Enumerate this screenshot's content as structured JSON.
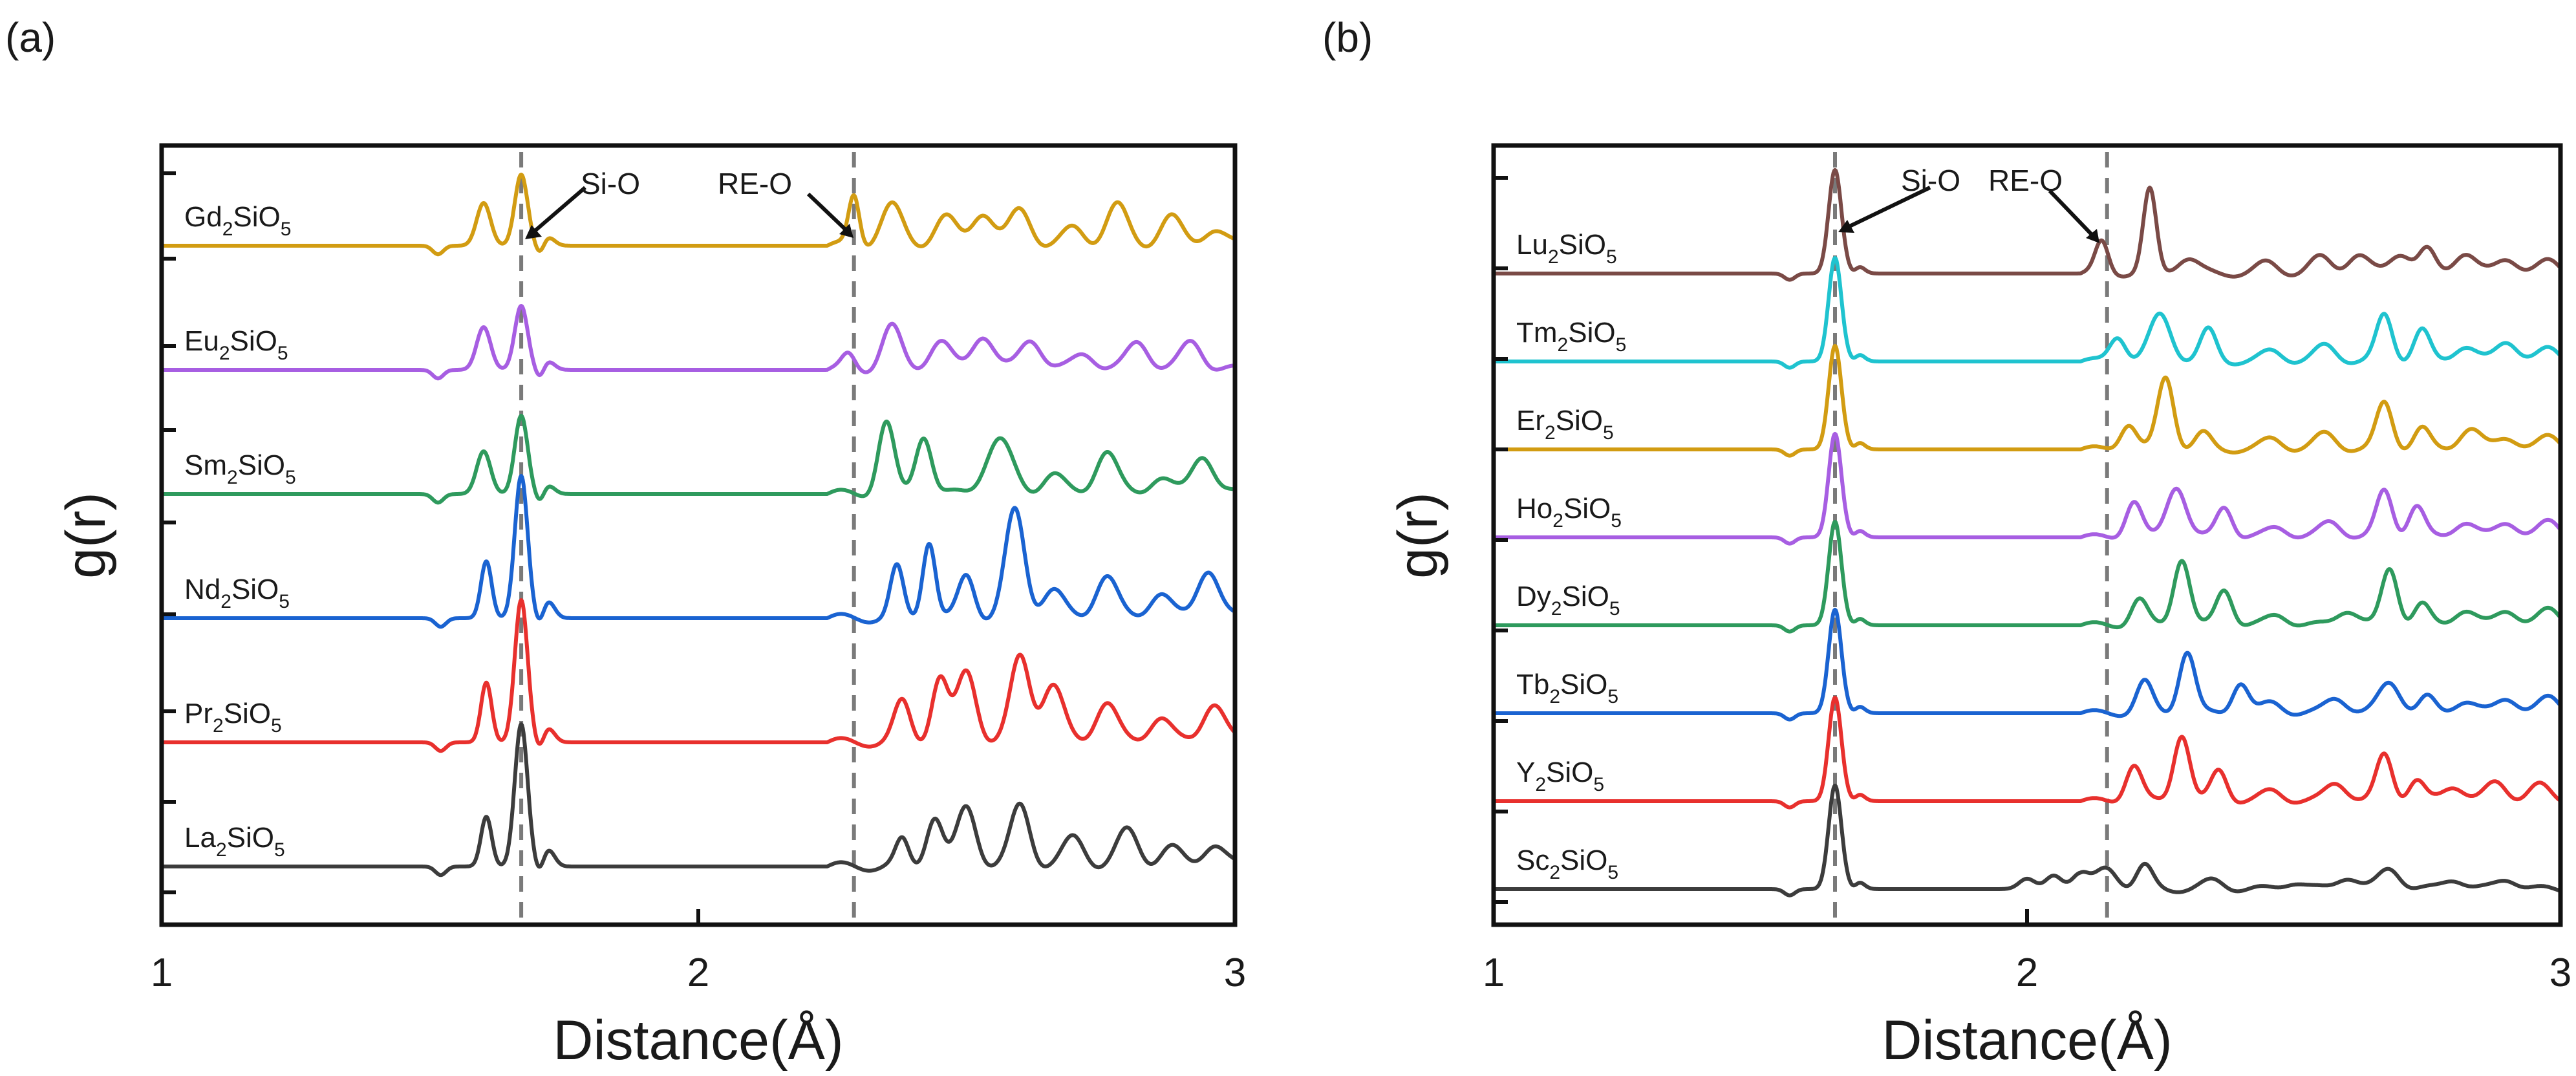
{
  "chart_data": [
    {
      "type": "line",
      "panel": "(a)",
      "xlabel": "Distance(Å)",
      "ylabel": "g(r)",
      "xlim": [
        1,
        3
      ],
      "xticks": [
        "1",
        "2",
        "3"
      ],
      "vlines": [
        1.67,
        2.29
      ],
      "annotations": [
        {
          "text": "Si-O",
          "x": 1.67
        },
        {
          "text": "RE-O",
          "x": 2.29
        }
      ],
      "series": [
        {
          "name": "La2SiO5",
          "base": "La",
          "sub1": "2",
          "mid": "SiO",
          "sub2": "5",
          "color": "#3c3c3c",
          "peaks": [
            [
              1.605,
              0.35,
              0.01
            ],
            [
              1.67,
              1.0,
              0.012
            ],
            [
              1.72,
              0.12,
              0.012
            ],
            [
              2.38,
              0.18,
              0.012
            ],
            [
              2.44,
              0.35,
              0.015
            ],
            [
              2.5,
              0.42,
              0.018
            ],
            [
              2.6,
              0.43,
              0.018
            ],
            [
              2.7,
              0.2,
              0.02
            ],
            [
              2.8,
              0.25,
              0.02
            ],
            [
              2.88,
              0.13,
              0.02
            ],
            [
              2.96,
              0.16,
              0.02
            ]
          ]
        },
        {
          "name": "Pr2SiO5",
          "base": "Pr",
          "sub1": "2",
          "mid": "SiO",
          "sub2": "5",
          "color": "#e8302d",
          "peaks": [
            [
              1.605,
              0.42,
              0.01
            ],
            [
              1.67,
              1.0,
              0.012
            ],
            [
              1.72,
              0.1,
              0.012
            ],
            [
              2.38,
              0.28,
              0.015
            ],
            [
              2.45,
              0.45,
              0.015
            ],
            [
              2.5,
              0.5,
              0.018
            ],
            [
              2.6,
              0.6,
              0.018
            ],
            [
              2.66,
              0.4,
              0.02
            ],
            [
              2.76,
              0.28,
              0.02
            ],
            [
              2.86,
              0.18,
              0.02
            ],
            [
              2.96,
              0.28,
              0.02
            ]
          ]
        },
        {
          "name": "Nd2SiO5",
          "base": "Nd",
          "sub1": "2",
          "mid": "SiO",
          "sub2": "5",
          "color": "#1a63d1",
          "peaks": [
            [
              1.605,
              0.4,
              0.01
            ],
            [
              1.67,
              1.0,
              0.012
            ],
            [
              1.72,
              0.12,
              0.012
            ],
            [
              2.37,
              0.35,
              0.012
            ],
            [
              2.43,
              0.55,
              0.012
            ],
            [
              2.5,
              0.3,
              0.015
            ],
            [
              2.59,
              0.75,
              0.018
            ],
            [
              2.66,
              0.2,
              0.02
            ],
            [
              2.76,
              0.3,
              0.02
            ],
            [
              2.86,
              0.18,
              0.02
            ],
            [
              2.95,
              0.35,
              0.02
            ]
          ]
        },
        {
          "name": "Sm2SiO5",
          "base": "Sm",
          "sub1": "2",
          "mid": "SiO",
          "sub2": "5",
          "color": "#2e9a5d",
          "peaks": [
            [
              1.6,
              0.3,
              0.013
            ],
            [
              1.67,
              0.55,
              0.012
            ],
            [
              1.72,
              0.06,
              0.012
            ],
            [
              2.35,
              0.5,
              0.015
            ],
            [
              2.42,
              0.42,
              0.015
            ],
            [
              2.56,
              0.38,
              0.025
            ],
            [
              2.66,
              0.14,
              0.02
            ],
            [
              2.76,
              0.3,
              0.02
            ],
            [
              2.86,
              0.12,
              0.02
            ],
            [
              2.94,
              0.28,
              0.02
            ]
          ]
        },
        {
          "name": "Eu2SiO5",
          "base": "Eu",
          "sub1": "2",
          "mid": "SiO",
          "sub2": "5",
          "color": "#a75ee2",
          "peaks": [
            [
              1.6,
              0.3,
              0.013
            ],
            [
              1.67,
              0.45,
              0.012
            ],
            [
              1.72,
              0.06,
              0.012
            ],
            [
              2.28,
              0.1,
              0.012
            ],
            [
              2.36,
              0.3,
              0.018
            ],
            [
              2.45,
              0.2,
              0.02
            ],
            [
              2.53,
              0.25,
              0.02
            ],
            [
              2.62,
              0.22,
              0.02
            ],
            [
              2.72,
              0.12,
              0.02
            ],
            [
              2.82,
              0.2,
              0.02
            ],
            [
              2.92,
              0.2,
              0.02
            ]
          ]
        },
        {
          "name": "Gd2SiO5",
          "base": "Gd",
          "sub1": "2",
          "mid": "SiO",
          "sub2": "5",
          "color": "#d29c12",
          "peaks": [
            [
              1.6,
              0.3,
              0.013
            ],
            [
              1.67,
              0.5,
              0.012
            ],
            [
              1.72,
              0.06,
              0.012
            ],
            [
              2.29,
              0.35,
              0.01
            ],
            [
              2.36,
              0.28,
              0.02
            ],
            [
              2.46,
              0.2,
              0.02
            ],
            [
              2.53,
              0.24,
              0.02
            ],
            [
              2.6,
              0.25,
              0.02
            ],
            [
              2.7,
              0.12,
              0.02
            ],
            [
              2.78,
              0.28,
              0.02
            ],
            [
              2.88,
              0.2,
              0.02
            ],
            [
              2.96,
              0.12,
              0.02
            ]
          ]
        }
      ]
    },
    {
      "type": "line",
      "panel": "(b)",
      "xlabel": "Distance(Å)",
      "ylabel": "g(r)",
      "xlim": [
        1,
        3
      ],
      "xticks": [
        "1",
        "2",
        "3"
      ],
      "vlines": [
        1.64,
        2.15
      ],
      "annotations": [
        {
          "text": "Si-O",
          "x": 1.64
        },
        {
          "text": "RE-O",
          "x": 2.15
        }
      ],
      "series": [
        {
          "name": "Sc2SiO5",
          "base": "Sc",
          "sub1": "2",
          "mid": "SiO",
          "sub2": "5",
          "color": "#3c3c3c",
          "peaks": [
            [
              1.64,
              1.0,
              0.012
            ],
            [
              1.68,
              0.1,
              0.012
            ],
            [
              2.0,
              0.1,
              0.015
            ],
            [
              2.05,
              0.13,
              0.015
            ],
            [
              2.1,
              0.15,
              0.015
            ],
            [
              2.15,
              0.2,
              0.02
            ],
            [
              2.22,
              0.22,
              0.015
            ],
            [
              2.35,
              0.08,
              0.02
            ],
            [
              2.5,
              0.07,
              0.02
            ],
            [
              2.6,
              0.12,
              0.02
            ],
            [
              2.68,
              0.2,
              0.02
            ],
            [
              2.8,
              0.1,
              0.02
            ],
            [
              2.9,
              0.1,
              0.02
            ]
          ]
        },
        {
          "name": "Y2SiO5",
          "base": "Y",
          "sub1": "2",
          "mid": "SiO",
          "sub2": "5",
          "color": "#e8302d",
          "peaks": [
            [
              1.64,
              1.0,
              0.012
            ],
            [
              1.68,
              0.1,
              0.012
            ],
            [
              2.2,
              0.35,
              0.015
            ],
            [
              2.29,
              0.65,
              0.015
            ],
            [
              2.36,
              0.3,
              0.015
            ],
            [
              2.46,
              0.1,
              0.02
            ],
            [
              2.58,
              0.18,
              0.02
            ],
            [
              2.67,
              0.45,
              0.015
            ],
            [
              2.73,
              0.2,
              0.015
            ],
            [
              2.8,
              0.15,
              0.02
            ],
            [
              2.88,
              0.18,
              0.02
            ],
            [
              2.96,
              0.15,
              0.02
            ]
          ]
        },
        {
          "name": "Tb2SiO5",
          "base": "Tb",
          "sub1": "2",
          "mid": "SiO",
          "sub2": "5",
          "color": "#1a63d1",
          "peaks": [
            [
              1.64,
              1.0,
              0.012
            ],
            [
              1.68,
              0.1,
              0.012
            ],
            [
              2.22,
              0.3,
              0.015
            ],
            [
              2.3,
              0.6,
              0.015
            ],
            [
              2.4,
              0.3,
              0.015
            ],
            [
              2.46,
              0.1,
              0.02
            ],
            [
              2.58,
              0.15,
              0.02
            ],
            [
              2.68,
              0.3,
              0.02
            ],
            [
              2.75,
              0.15,
              0.015
            ],
            [
              2.82,
              0.12,
              0.02
            ],
            [
              2.9,
              0.15,
              0.02
            ],
            [
              2.98,
              0.15,
              0.02
            ]
          ]
        },
        {
          "name": "Dy2SiO5",
          "base": "Dy",
          "sub1": "2",
          "mid": "SiO",
          "sub2": "5",
          "color": "#2e9a5d",
          "peaks": [
            [
              1.64,
              1.0,
              0.012
            ],
            [
              1.68,
              0.1,
              0.012
            ],
            [
              2.21,
              0.25,
              0.015
            ],
            [
              2.29,
              0.65,
              0.015
            ],
            [
              2.37,
              0.35,
              0.015
            ],
            [
              2.47,
              0.1,
              0.02
            ],
            [
              2.6,
              0.15,
              0.02
            ],
            [
              2.68,
              0.55,
              0.015
            ],
            [
              2.74,
              0.2,
              0.015
            ],
            [
              2.82,
              0.15,
              0.02
            ],
            [
              2.9,
              0.15,
              0.02
            ],
            [
              2.98,
              0.15,
              0.02
            ]
          ]
        },
        {
          "name": "Ho2SiO5",
          "base": "Ho",
          "sub1": "2",
          "mid": "SiO",
          "sub2": "5",
          "color": "#a75ee2",
          "peaks": [
            [
              1.64,
              1.0,
              0.012
            ],
            [
              1.68,
              0.1,
              0.012
            ],
            [
              2.2,
              0.35,
              0.015
            ],
            [
              2.28,
              0.5,
              0.018
            ],
            [
              2.37,
              0.3,
              0.015
            ],
            [
              2.47,
              0.1,
              0.02
            ],
            [
              2.57,
              0.15,
              0.02
            ],
            [
              2.67,
              0.45,
              0.015
            ],
            [
              2.73,
              0.3,
              0.015
            ],
            [
              2.82,
              0.15,
              0.02
            ],
            [
              2.9,
              0.15,
              0.02
            ],
            [
              2.98,
              0.15,
              0.02
            ]
          ]
        },
        {
          "name": "Er2SiO5",
          "base": "Er",
          "sub1": "2",
          "mid": "SiO",
          "sub2": "5",
          "color": "#d29c12",
          "peaks": [
            [
              1.64,
              1.0,
              0.012
            ],
            [
              1.68,
              0.1,
              0.012
            ],
            [
              2.19,
              0.25,
              0.015
            ],
            [
              2.26,
              0.7,
              0.015
            ],
            [
              2.33,
              0.15,
              0.015
            ],
            [
              2.46,
              0.1,
              0.02
            ],
            [
              2.56,
              0.15,
              0.02
            ],
            [
              2.67,
              0.45,
              0.015
            ],
            [
              2.74,
              0.2,
              0.015
            ],
            [
              2.83,
              0.2,
              0.02
            ],
            [
              2.9,
              0.12,
              0.02
            ],
            [
              2.98,
              0.12,
              0.02
            ]
          ]
        },
        {
          "name": "Tm2SiO5",
          "base": "Tm",
          "sub1": "2",
          "mid": "SiO",
          "sub2": "5",
          "color": "#1fc3cf",
          "peaks": [
            [
              1.64,
              1.0,
              0.012
            ],
            [
              1.68,
              0.1,
              0.012
            ],
            [
              2.17,
              0.25,
              0.015
            ],
            [
              2.25,
              0.45,
              0.02
            ],
            [
              2.34,
              0.3,
              0.015
            ],
            [
              2.46,
              0.1,
              0.02
            ],
            [
              2.56,
              0.15,
              0.02
            ],
            [
              2.67,
              0.45,
              0.015
            ],
            [
              2.74,
              0.3,
              0.015
            ],
            [
              2.82,
              0.15,
              0.02
            ],
            [
              2.9,
              0.2,
              0.02
            ],
            [
              2.98,
              0.12,
              0.02
            ]
          ]
        },
        {
          "name": "Lu2SiO5",
          "base": "Lu",
          "sub1": "2",
          "mid": "SiO",
          "sub2": "5",
          "color": "#7a4a46",
          "peaks": [
            [
              1.64,
              1.0,
              0.012
            ],
            [
              1.68,
              0.1,
              0.012
            ],
            [
              2.14,
              0.3,
              0.012
            ],
            [
              2.23,
              0.8,
              0.012
            ],
            [
              2.3,
              0.15,
              0.02
            ],
            [
              2.45,
              0.1,
              0.02
            ],
            [
              2.55,
              0.15,
              0.02
            ],
            [
              2.62,
              0.18,
              0.02
            ],
            [
              2.7,
              0.2,
              0.02
            ],
            [
              2.75,
              0.22,
              0.015
            ],
            [
              2.82,
              0.2,
              0.02
            ],
            [
              2.9,
              0.15,
              0.02
            ],
            [
              2.98,
              0.12,
              0.02
            ]
          ]
        }
      ]
    }
  ]
}
